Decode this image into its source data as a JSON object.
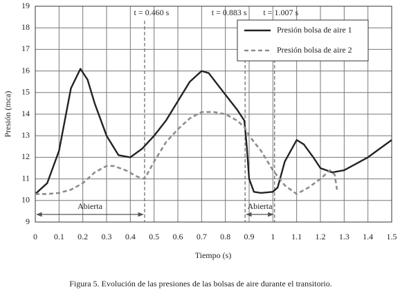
{
  "chart_data": {
    "type": "line",
    "xlabel": "Tiempo (s)",
    "ylabel": "Presión (mca)",
    "caption": "Figura 5. Evolución de las presiones de las bolsas de aire durante el transitorio.",
    "xlim": [
      0,
      1.5
    ],
    "ylim": [
      9,
      19
    ],
    "xticks": [
      0,
      0.1,
      0.2,
      0.3,
      0.4,
      0.5,
      0.6,
      0.7,
      0.8,
      0.9,
      1,
      1.1,
      1.2,
      1.3,
      1.4,
      1.5
    ],
    "yticks": [
      9,
      10,
      11,
      12,
      13,
      14,
      15,
      16,
      17,
      18,
      19
    ],
    "grid": true,
    "legend": "top-right",
    "series": [
      {
        "name": "Presión bolsa de aire 1",
        "color": "#222222",
        "dash": false,
        "x": [
          0,
          0.05,
          0.1,
          0.15,
          0.19,
          0.22,
          0.25,
          0.3,
          0.35,
          0.4,
          0.45,
          0.5,
          0.55,
          0.6,
          0.65,
          0.7,
          0.73,
          0.8,
          0.85,
          0.88,
          0.89,
          0.9,
          0.92,
          0.95,
          1.0,
          1.02,
          1.05,
          1.1,
          1.13,
          1.17,
          1.2,
          1.25,
          1.3,
          1.35,
          1.4,
          1.45,
          1.5
        ],
        "values": [
          10.3,
          10.8,
          12.3,
          15.2,
          16.1,
          15.6,
          14.5,
          13.0,
          12.1,
          12.0,
          12.4,
          13.0,
          13.7,
          14.6,
          15.5,
          16.0,
          15.9,
          14.9,
          14.2,
          13.7,
          12.5,
          11.0,
          10.4,
          10.35,
          10.4,
          10.6,
          11.8,
          12.8,
          12.6,
          12.0,
          11.5,
          11.3,
          11.4,
          11.7,
          12.0,
          12.4,
          12.8
        ]
      },
      {
        "name": "Presión bolsa de aire 2",
        "color": "#8c8c8c",
        "dash": true,
        "x": [
          0,
          0.05,
          0.1,
          0.15,
          0.2,
          0.25,
          0.3,
          0.33,
          0.38,
          0.43,
          0.46,
          0.5,
          0.55,
          0.6,
          0.65,
          0.7,
          0.75,
          0.8,
          0.85,
          0.88,
          0.9,
          0.95,
          1.0,
          1.05,
          1.1,
          1.15,
          1.2,
          1.24,
          1.26,
          1.27
        ],
        "values": [
          10.3,
          10.3,
          10.35,
          10.5,
          10.8,
          11.3,
          11.6,
          11.6,
          11.4,
          11.1,
          11.0,
          11.8,
          12.7,
          13.3,
          13.8,
          14.1,
          14.1,
          14.0,
          13.7,
          13.4,
          13.0,
          12.3,
          11.4,
          10.7,
          10.3,
          10.6,
          11.0,
          11.4,
          11.2,
          10.5
        ]
      }
    ],
    "vlines": [
      {
        "x": 0.46,
        "label": "t = 0.460 s"
      },
      {
        "x": 0.883,
        "label": "t = 0.883 s"
      },
      {
        "x": 1.007,
        "label": "t = 1.007 s"
      }
    ],
    "spans": [
      {
        "from": 0,
        "to": 0.46,
        "label": "Abierta"
      },
      {
        "from": 0.883,
        "to": 1.007,
        "label": "Abierta"
      }
    ]
  }
}
